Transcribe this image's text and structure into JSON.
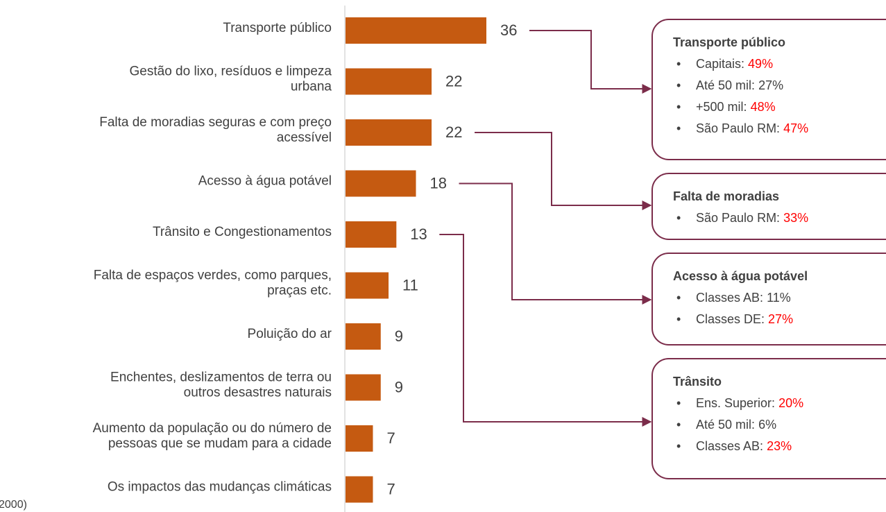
{
  "chart_data": {
    "type": "bar",
    "orientation": "horizontal",
    "categories": [
      [
        "Transporte público"
      ],
      [
        "Gestão do lixo, resíduos e limpeza",
        "urbana"
      ],
      [
        "Falta de moradias seguras e com preço",
        "acessível"
      ],
      [
        "Acesso à água potável"
      ],
      [
        "Trânsito e Congestionamentos"
      ],
      [
        "Falta de espaços verdes, como parques,",
        "praças etc."
      ],
      [
        "Poluição do ar"
      ],
      [
        "Enchentes, deslizamentos de terra ou",
        "outros desastres naturais"
      ],
      [
        "Aumento da população ou do número de",
        "pessoas que se mudam para a cidade"
      ],
      [
        "Os impactos das mudanças climáticas"
      ]
    ],
    "values": [
      36,
      22,
      22,
      18,
      13,
      11,
      9,
      9,
      7,
      7
    ],
    "color": "#c55a11",
    "footnote": "2000)",
    "callout_color": "#7b2c4a",
    "highlight_color": "#ff0000",
    "callouts": [
      {
        "title": "Transporte público",
        "items": [
          {
            "label": "Capitais:",
            "value": "49%",
            "highlight": true
          },
          {
            "label": "Até 50 mil:",
            "value": "27%",
            "highlight": false
          },
          {
            "label": "+500 mil:",
            "value": "48%",
            "highlight": true
          },
          {
            "label": "São Paulo RM:",
            "value": "47%",
            "highlight": true
          }
        ]
      },
      {
        "title": "Falta de moradias",
        "items": [
          {
            "label": "São Paulo RM:",
            "value": "33%",
            "highlight": true
          }
        ]
      },
      {
        "title": "Acesso à água potável",
        "items": [
          {
            "label": "Classes AB:",
            "value": "11%",
            "highlight": false
          },
          {
            "label": "Classes DE:",
            "value": "27%",
            "highlight": true
          }
        ]
      },
      {
        "title": "Trânsito",
        "items": [
          {
            "label": "Ens. Superior:",
            "value": "20%",
            "highlight": true
          },
          {
            "label": "Até 50 mil:",
            "value": "6%",
            "highlight": false
          },
          {
            "label": "Classes AB:",
            "value": "23%",
            "highlight": true
          }
        ]
      }
    ]
  }
}
